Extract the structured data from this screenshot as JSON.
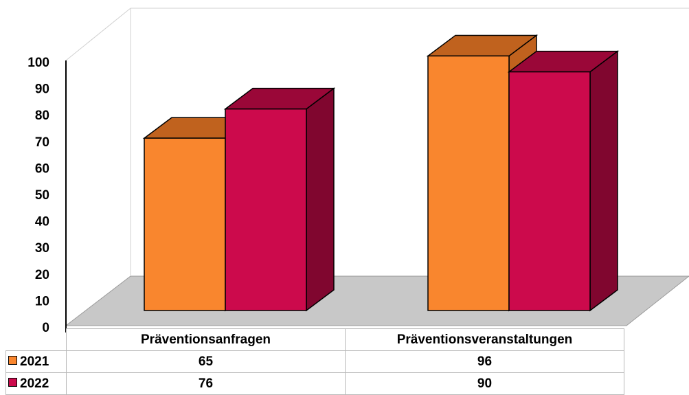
{
  "chart_data": {
    "type": "bar",
    "categories": [
      "Präventionsanfragen",
      "Präventionsveranstaltungen"
    ],
    "series": [
      {
        "name": "2021",
        "values": [
          65,
          96
        ],
        "color": "#F9862E",
        "top_color": "#C0621E",
        "side_color": "#C0621E"
      },
      {
        "name": "2022",
        "values": [
          76,
          90
        ],
        "color": "#CC0A4C",
        "top_color": "#9A0738",
        "side_color": "#80062F"
      }
    ],
    "ylim": [
      0,
      100
    ],
    "yticks": [
      "0",
      "10",
      "20",
      "30",
      "40",
      "50",
      "60",
      "70",
      "80",
      "90",
      "100"
    ],
    "grid": false,
    "floor_color": "#C8C8C8",
    "style": "3d-clustered-column with data table",
    "title": "",
    "xlabel": "",
    "ylabel": ""
  }
}
